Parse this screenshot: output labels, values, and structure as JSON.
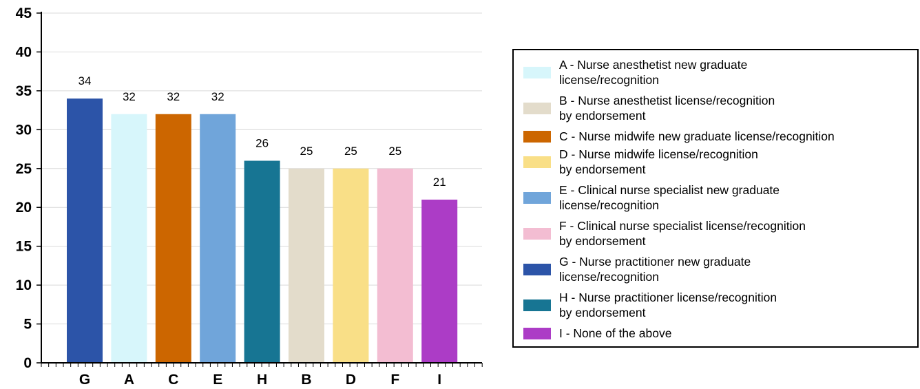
{
  "chart_data": {
    "type": "bar",
    "categories": [
      "G",
      "A",
      "C",
      "E",
      "H",
      "B",
      "D",
      "F",
      "I"
    ],
    "values": [
      34,
      32,
      32,
      32,
      26,
      25,
      25,
      25,
      21
    ],
    "colors": [
      "#2c54a8",
      "#d7f6fb",
      "#cc6600",
      "#70a5da",
      "#177593",
      "#e3dccb",
      "#f9df87",
      "#f3bdd2",
      "#ac3cc6"
    ],
    "ylim": [
      0,
      45
    ],
    "yticks": [
      0,
      5,
      10,
      15,
      20,
      25,
      30,
      35,
      40,
      45
    ],
    "grid": true,
    "legend_position": "right",
    "legend": [
      {
        "key": "A",
        "lines": [
          "A - Nurse anesthetist new graduate",
          "license/recognition"
        ],
        "color": "#d7f6fb"
      },
      {
        "key": "B",
        "lines": [
          "B - Nurse anesthetist license/recognition",
          "by endorsement"
        ],
        "color": "#e3dccb"
      },
      {
        "key": "C",
        "lines": [
          "C - Nurse midwife new graduate license/recognition"
        ],
        "color": "#cc6600"
      },
      {
        "key": "D",
        "lines": [
          "D - Nurse midwife license/recognition",
          "by endorsement"
        ],
        "color": "#f9df87"
      },
      {
        "key": "E",
        "lines": [
          "E - Clinical nurse specialist new graduate",
          "license/recognition"
        ],
        "color": "#70a5da"
      },
      {
        "key": "F",
        "lines": [
          "F - Clinical nurse specialist license/recognition",
          "by endorsement"
        ],
        "color": "#f3bdd2"
      },
      {
        "key": "G",
        "lines": [
          "G - Nurse practitioner new graduate",
          "license/recognition"
        ],
        "color": "#2c54a8"
      },
      {
        "key": "H",
        "lines": [
          "H - Nurse practitioner license/recognition",
          "by endorsement"
        ],
        "color": "#177593"
      },
      {
        "key": "I",
        "lines": [
          "I - None of the above"
        ],
        "color": "#ac3cc6"
      }
    ]
  }
}
